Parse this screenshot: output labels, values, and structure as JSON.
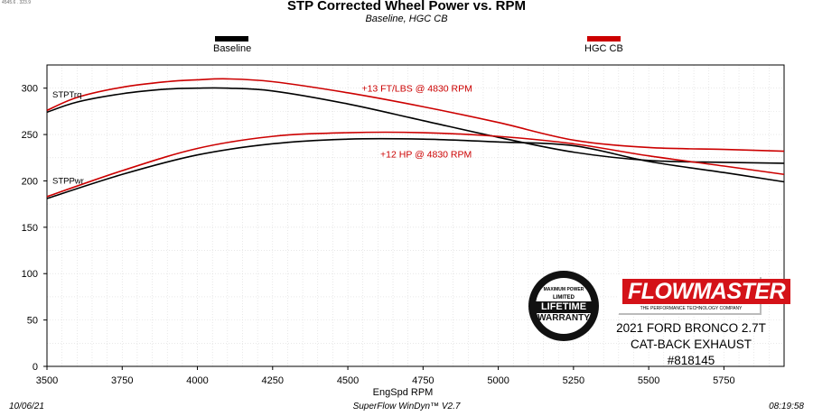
{
  "header": {
    "tiny_text": "4545.6 . 323.9",
    "title": "STP Corrected Wheel Power vs. RPM",
    "subtitle": "Baseline, HGC CB"
  },
  "legend": [
    {
      "label": "Baseline",
      "color": "#000000"
    },
    {
      "label": "HGC CB",
      "color": "#cc0000"
    }
  ],
  "annotations": {
    "torque_gain": "+13 FT/LBS @ 4830 RPM",
    "hp_gain": "+12 HP @ 4830 RPM",
    "torque_label": "STPTrq",
    "power_label": "STPPwr"
  },
  "branding": {
    "logo_text": "FLOWMASTER",
    "tagline": "THE PERFORMANCE TECHNOLOGY COMPANY",
    "badge_top": "MAXIMUM POWER",
    "badge_limited": "LIMITED",
    "badge_lifetime": "LIFETIME",
    "badge_warranty": "WARRANTY",
    "vehicle_line1": "2021 FORD BRONCO 2.7T",
    "vehicle_line2": "CAT-BACK EXHAUST #818145"
  },
  "footer": {
    "date": "10/06/21",
    "software": "SuperFlow WinDyn™  V2.7",
    "time": "08:19:58"
  },
  "chart_data": {
    "type": "line",
    "title": "STP Corrected Wheel Power vs. RPM",
    "subtitle": "Baseline, HGC CB",
    "xlabel": "EngSpd  RPM",
    "ylabel": "",
    "xlim": [
      3500,
      5950
    ],
    "ylim": [
      0,
      325
    ],
    "xticks": [
      3500,
      3750,
      4000,
      4250,
      4500,
      4750,
      5000,
      5250,
      5500,
      5750
    ],
    "yticks": [
      0,
      50,
      100,
      150,
      200,
      250,
      300
    ],
    "grid": true,
    "legend_position": "top",
    "series": [
      {
        "name": "Baseline",
        "metric": "STPTrq",
        "color": "#000000",
        "x": [
          3500,
          3600,
          3750,
          3900,
          4000,
          4100,
          4250,
          4500,
          4750,
          5000,
          5250,
          5500,
          5750,
          5950
        ],
        "y": [
          274,
          285,
          294,
          299,
          300,
          300,
          297,
          283,
          265,
          247,
          231,
          222,
          220,
          219
        ]
      },
      {
        "name": "HGC CB",
        "metric": "STPTrq",
        "color": "#cc0000",
        "x": [
          3500,
          3600,
          3750,
          3900,
          4000,
          4100,
          4250,
          4500,
          4750,
          5000,
          5250,
          5500,
          5750,
          5950
        ],
        "y": [
          276,
          290,
          301,
          307,
          309,
          310,
          307,
          295,
          280,
          263,
          244,
          236,
          234,
          232
        ]
      },
      {
        "name": "Baseline",
        "metric": "STPPwr",
        "color": "#000000",
        "x": [
          3500,
          3750,
          4000,
          4250,
          4500,
          4750,
          5000,
          5250,
          5500,
          5750,
          5950
        ],
        "y": [
          181,
          207,
          228,
          240,
          245,
          245,
          242,
          238,
          221,
          209,
          199
        ]
      },
      {
        "name": "HGC CB",
        "metric": "STPPwr",
        "color": "#cc0000",
        "x": [
          3500,
          3750,
          4000,
          4250,
          4500,
          4750,
          5000,
          5250,
          5500,
          5750,
          5950
        ],
        "y": [
          183,
          211,
          235,
          248,
          252,
          252,
          248,
          240,
          227,
          216,
          207
        ]
      }
    ]
  }
}
